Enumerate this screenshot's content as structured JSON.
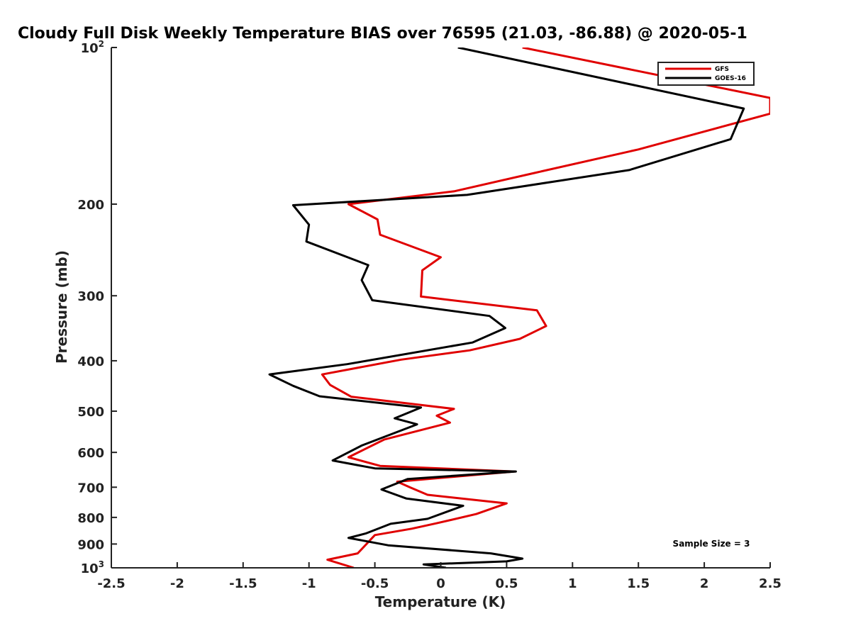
{
  "chart_data": {
    "type": "line",
    "title": "Cloudy Full Disk Weekly Temperature BIAS over 76595 (21.03, -86.88) @ 2020-05-1",
    "xlabel": "Temperature (K)",
    "ylabel": "Pressure (mb)",
    "xlim": [
      -2.5,
      2.5
    ],
    "ylim": [
      100,
      1000
    ],
    "y_scale": "log",
    "y_reversed": true,
    "grid": false,
    "legend_position": "top-right",
    "x_ticks": [
      "-2.5",
      "-2",
      "-1.5",
      "-1",
      "-0.5",
      "0",
      "0.5",
      "1",
      "1.5",
      "2",
      "2.5"
    ],
    "y_ticks": [
      {
        "value": 100,
        "base": "10",
        "exp": "2"
      },
      {
        "value": 200,
        "label": "200"
      },
      {
        "value": 300,
        "label": "300"
      },
      {
        "value": 400,
        "label": "400"
      },
      {
        "value": 500,
        "label": "500"
      },
      {
        "value": 600,
        "label": "600"
      },
      {
        "value": 700,
        "label": "700"
      },
      {
        "value": 800,
        "label": "800"
      },
      {
        "value": 900,
        "label": "900"
      },
      {
        "value": 1000,
        "base": "10",
        "exp": "3"
      }
    ],
    "series": [
      {
        "name": "GFS",
        "color": "#e00000",
        "points": [
          [
            0.62,
            100
          ],
          [
            2.5,
            125
          ],
          [
            2.5,
            134
          ],
          [
            1.5,
            157
          ],
          [
            0.72,
            174
          ],
          [
            0.1,
            189
          ],
          [
            -0.7,
            200
          ],
          [
            -0.48,
            214
          ],
          [
            -0.46,
            229
          ],
          [
            0.0,
            253
          ],
          [
            -0.14,
            268
          ],
          [
            -0.15,
            301
          ],
          [
            0.73,
            320
          ],
          [
            0.8,
            343
          ],
          [
            0.6,
            363
          ],
          [
            0.22,
            382
          ],
          [
            -0.3,
            398
          ],
          [
            -0.9,
            425
          ],
          [
            -0.84,
            445
          ],
          [
            -0.68,
            469
          ],
          [
            0.1,
            495
          ],
          [
            -0.03,
            510
          ],
          [
            0.07,
            526
          ],
          [
            -0.43,
            567
          ],
          [
            -0.7,
            613
          ],
          [
            -0.46,
            637
          ],
          [
            0.56,
            653
          ],
          [
            -0.33,
            683
          ],
          [
            -0.23,
            701
          ],
          [
            -0.1,
            724
          ],
          [
            0.5,
            752
          ],
          [
            0.27,
            788
          ],
          [
            -0.03,
            821
          ],
          [
            -0.22,
            841
          ],
          [
            -0.5,
            865
          ],
          [
            -0.63,
            938
          ],
          [
            -0.86,
            965
          ],
          [
            -0.66,
            1000
          ]
        ]
      },
      {
        "name": "GOES-16",
        "color": "#000000",
        "points": [
          [
            0.13,
            100
          ],
          [
            2.3,
            131
          ],
          [
            2.2,
            150
          ],
          [
            1.43,
            172
          ],
          [
            0.2,
            192
          ],
          [
            -1.12,
            201
          ],
          [
            -1.0,
            219
          ],
          [
            -1.02,
            236
          ],
          [
            -0.55,
            262
          ],
          [
            -0.6,
            280
          ],
          [
            -0.52,
            306
          ],
          [
            0.37,
            328
          ],
          [
            0.49,
            346
          ],
          [
            0.24,
            369
          ],
          [
            -0.71,
            406
          ],
          [
            -1.3,
            425
          ],
          [
            -1.12,
            447
          ],
          [
            -0.92,
            468
          ],
          [
            -0.15,
            492
          ],
          [
            -0.35,
            516
          ],
          [
            -0.18,
            530
          ],
          [
            -0.6,
            582
          ],
          [
            -0.82,
            622
          ],
          [
            -0.5,
            644
          ],
          [
            0.57,
            653
          ],
          [
            -0.25,
            675
          ],
          [
            -0.45,
            707
          ],
          [
            -0.26,
            736
          ],
          [
            0.17,
            760
          ],
          [
            -0.1,
            805
          ],
          [
            -0.38,
            823
          ],
          [
            -0.57,
            859
          ],
          [
            -0.7,
            876
          ],
          [
            -0.4,
            905
          ],
          [
            0.38,
            938
          ],
          [
            0.62,
            960
          ],
          [
            0.5,
            972
          ],
          [
            -0.13,
            985
          ],
          [
            0.04,
            1000
          ]
        ]
      }
    ],
    "annotation": "Sample Size = 3"
  }
}
